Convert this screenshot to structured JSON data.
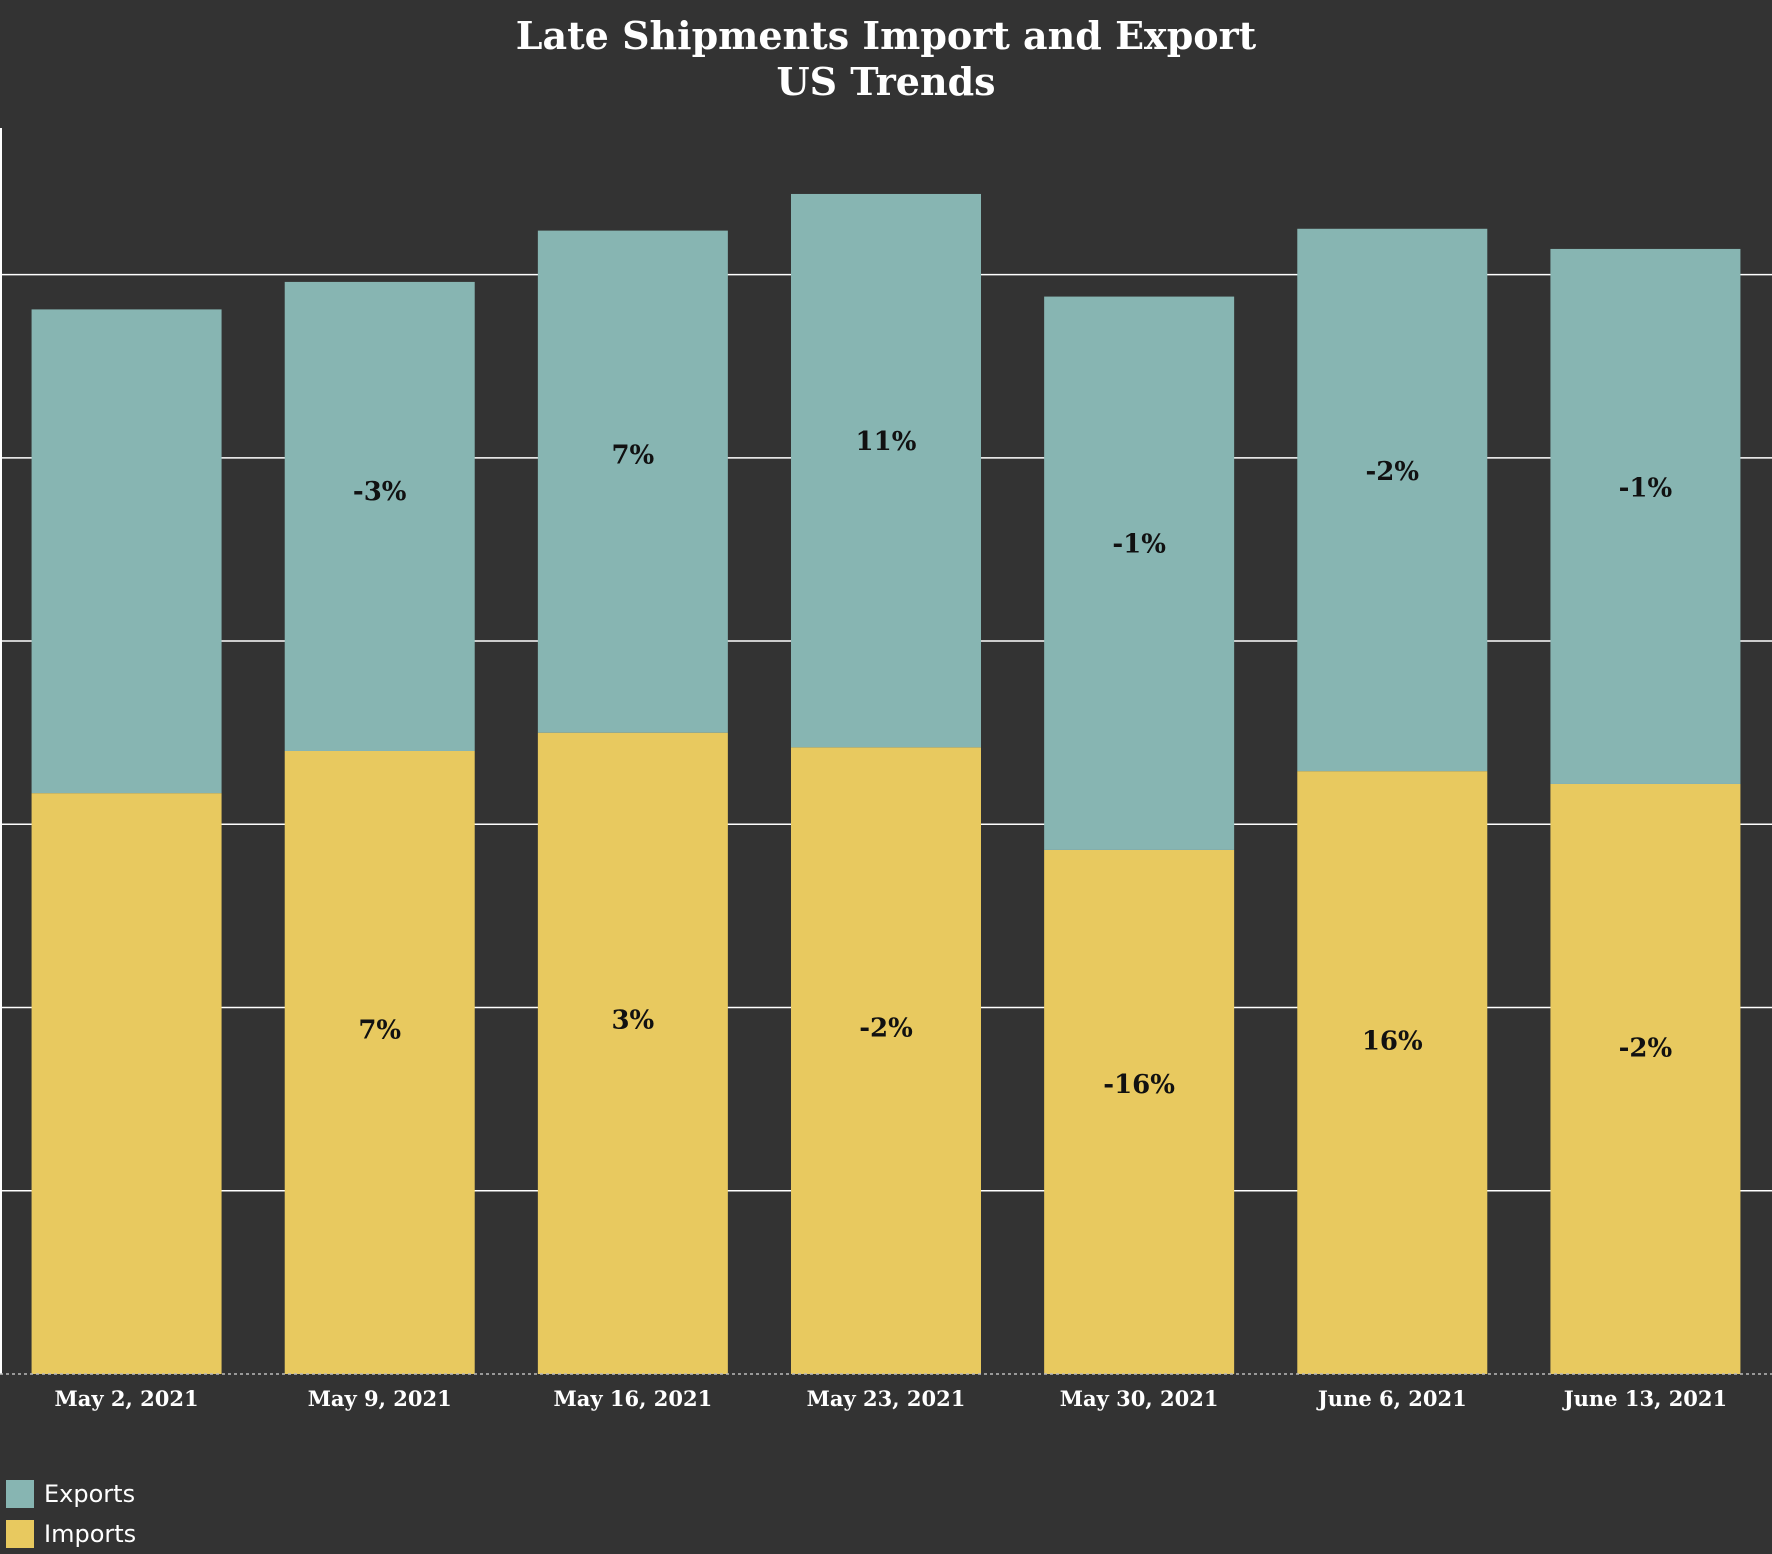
{
  "chart_data": {
    "type": "bar",
    "stacked": true,
    "title": "Late Shipments Import and Export",
    "subtitle": "US Trends",
    "xlabel": "",
    "ylabel": "",
    "categories": [
      "May 2, 2021",
      "May 9, 2021",
      "May 16, 2021",
      "May 23, 2021",
      "May 30, 2021",
      "June 6, 2021",
      "June 13, 2021"
    ],
    "series": [
      {
        "name": "Imports",
        "color": "#E8C95F",
        "values": [
          3.17,
          3.4,
          3.5,
          3.42,
          2.86,
          3.29,
          3.22
        ],
        "labels": [
          "",
          "7%",
          "3%",
          "-2%",
          "-16%",
          "16%",
          "-2%"
        ]
      },
      {
        "name": "Exports",
        "color": "#87B5B2",
        "values": [
          2.64,
          2.56,
          2.74,
          3.02,
          3.02,
          2.96,
          2.92
        ],
        "labels": [
          "",
          "-3%",
          "7%",
          "11%",
          "-1%",
          "-2%",
          "-1%"
        ]
      }
    ],
    "ylim": [
      0,
      6.8
    ],
    "gridlines": [
      1,
      2,
      3,
      4,
      5,
      6
    ],
    "grid": true,
    "legend_position": "bottom-left",
    "background": "#333333",
    "grid_color": "#ffffff"
  }
}
